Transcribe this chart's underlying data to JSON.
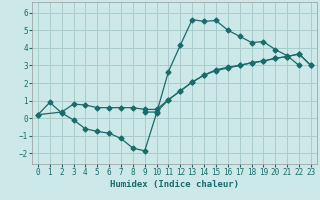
{
  "xlabel": "Humidex (Indice chaleur)",
  "background_color": "#cce8e8",
  "grid_color": "#aacccc",
  "line_color": "#1a6b6b",
  "xlim": [
    -0.5,
    23.5
  ],
  "ylim": [
    -2.6,
    6.6
  ],
  "xticks": [
    0,
    1,
    2,
    3,
    4,
    5,
    6,
    7,
    8,
    9,
    10,
    11,
    12,
    13,
    14,
    15,
    16,
    17,
    18,
    19,
    20,
    21,
    22,
    23
  ],
  "yticks": [
    -2,
    -1,
    0,
    1,
    2,
    3,
    4,
    5,
    6
  ],
  "line1_x": [
    0,
    1,
    2,
    3,
    4,
    5,
    6,
    7,
    8,
    9,
    10,
    11,
    12,
    13,
    14,
    15,
    16,
    17,
    18,
    19,
    20,
    21,
    22
  ],
  "line1_y": [
    0.2,
    0.9,
    0.3,
    -0.1,
    -0.6,
    -0.75,
    -0.85,
    -1.15,
    -1.7,
    -1.85,
    0.3,
    2.65,
    4.15,
    5.6,
    5.5,
    5.55,
    5.0,
    4.65,
    4.3,
    4.35,
    3.9,
    3.55,
    3.0
  ],
  "line2_x": [
    0,
    2,
    3,
    4,
    5,
    6,
    7,
    8,
    9,
    10,
    11,
    12,
    13,
    14,
    15,
    16,
    17,
    18,
    19,
    20,
    21,
    22,
    23
  ],
  "line2_y": [
    0.2,
    0.35,
    0.8,
    0.75,
    0.6,
    0.6,
    0.6,
    0.6,
    0.5,
    0.5,
    1.05,
    1.55,
    2.05,
    2.45,
    2.75,
    2.9,
    3.0,
    3.15,
    3.25,
    3.4,
    3.5,
    3.65,
    3.0
  ],
  "line3_x": [
    9,
    10,
    11,
    12,
    13,
    14,
    15,
    16,
    17,
    18,
    19,
    20,
    21,
    22,
    23
  ],
  "line3_y": [
    0.35,
    0.35,
    1.05,
    1.55,
    2.05,
    2.45,
    2.7,
    2.85,
    3.0,
    3.15,
    3.25,
    3.4,
    3.5,
    3.65,
    3.0
  ]
}
